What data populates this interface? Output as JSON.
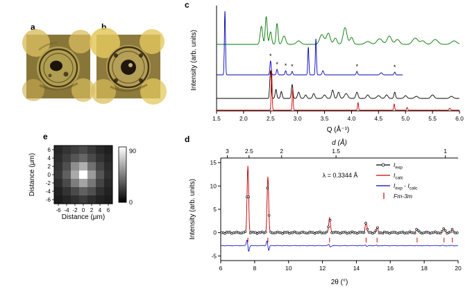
{
  "figure": {
    "panels": {
      "a": {
        "label": "a"
      },
      "b": {
        "label": "b"
      },
      "c": {
        "label": "c"
      },
      "d": {
        "label": "d"
      },
      "e": {
        "label": "e"
      }
    }
  },
  "colors": {
    "green": "#007700",
    "blue": "#0000bb",
    "black": "#000000",
    "red": "#cc0000",
    "asterisk": "#cc2200"
  },
  "chart_data": [
    {
      "id": "c",
      "type": "line",
      "title": "",
      "xlabel": "Q (Å⁻¹)",
      "ylabel": "Intensity (arb. units)",
      "xlim": [
        1.5,
        6.0
      ],
      "x_ticks": [
        "1.5",
        "2.0",
        "2.5",
        "3.0",
        "3.5",
        "4.0",
        "4.5",
        "5.0",
        "5.5",
        "6.0"
      ],
      "series": [
        {
          "name": "pattern-green",
          "color": "#007700",
          "baseline": 62,
          "xmin": 1.5,
          "xmax": 6.0,
          "peaks": [
            [
              2.33,
              26,
              0.022
            ],
            [
              2.42,
              40,
              0.018
            ],
            [
              2.5,
              18,
              0.02
            ],
            [
              2.62,
              30,
              0.018
            ],
            [
              2.75,
              12,
              0.03
            ],
            [
              3.02,
              5,
              0.04
            ],
            [
              3.45,
              14,
              0.04
            ],
            [
              3.57,
              16,
              0.035
            ],
            [
              3.7,
              9,
              0.03
            ],
            [
              3.88,
              24,
              0.035
            ],
            [
              4.0,
              10,
              0.03
            ],
            [
              4.3,
              4,
              0.05
            ],
            [
              4.52,
              8,
              0.05
            ],
            [
              4.7,
              12,
              0.04
            ],
            [
              4.85,
              7,
              0.04
            ],
            [
              5.18,
              9,
              0.05
            ],
            [
              5.32,
              5,
              0.04
            ],
            [
              5.55,
              7,
              0.05
            ],
            [
              5.9,
              5,
              0.05
            ]
          ]
        },
        {
          "name": "pattern-blue",
          "color": "#0000bb",
          "baseline": 106,
          "xmin": 1.5,
          "xmax": 4.95,
          "peaks": [
            [
              1.655,
              92,
              0.01
            ],
            [
              2.5,
              20,
              0.012
            ],
            [
              2.62,
              8,
              0.012
            ],
            [
              2.78,
              6,
              0.012
            ],
            [
              2.9,
              5,
              0.012
            ],
            [
              3.2,
              40,
              0.01
            ],
            [
              3.34,
              52,
              0.01
            ],
            [
              3.47,
              6,
              0.015
            ],
            [
              4.1,
              5,
              0.012
            ],
            [
              4.55,
              3,
              0.02
            ],
            [
              4.8,
              4,
              0.012
            ]
          ]
        },
        {
          "name": "pattern-black",
          "color": "#000000",
          "baseline": 140,
          "xmin": 1.5,
          "xmax": 6.0,
          "peaks": [
            [
              2.5,
              40,
              0.014
            ],
            [
              2.6,
              13,
              0.015
            ],
            [
              2.7,
              10,
              0.015
            ],
            [
              2.9,
              20,
              0.014
            ],
            [
              3.02,
              9,
              0.02
            ],
            [
              3.15,
              5,
              0.02
            ],
            [
              3.3,
              7,
              0.02
            ],
            [
              3.5,
              5,
              0.025
            ],
            [
              3.65,
              12,
              0.02
            ],
            [
              3.76,
              9,
              0.02
            ],
            [
              3.9,
              7,
              0.03
            ],
            [
              4.1,
              9,
              0.02
            ],
            [
              4.3,
              5,
              0.025
            ],
            [
              4.5,
              4,
              0.03
            ],
            [
              4.65,
              5,
              0.025
            ],
            [
              4.8,
              9,
              0.015
            ],
            [
              5.0,
              4,
              0.025
            ],
            [
              5.2,
              3,
              0.03
            ],
            [
              5.5,
              5,
              0.03
            ],
            [
              5.85,
              3,
              0.03
            ]
          ]
        },
        {
          "name": "pattern-red",
          "color": "#cc0000",
          "baseline": 157,
          "xmin": 1.5,
          "xmax": 6.0,
          "peaks": [
            [
              2.52,
              58,
              0.009
            ],
            [
              2.91,
              30,
              0.009
            ],
            [
              4.12,
              11,
              0.009
            ],
            [
              4.79,
              9,
              0.009
            ],
            [
              5.03,
              4,
              0.01
            ],
            [
              5.82,
              3,
              0.012
            ]
          ]
        }
      ],
      "asterisks": [
        {
          "q": 2.5
        },
        {
          "q": 2.62
        },
        {
          "q": 2.78
        },
        {
          "q": 2.9
        },
        {
          "q": 4.1
        },
        {
          "q": 4.8
        }
      ]
    },
    {
      "id": "d",
      "type": "line",
      "title": "",
      "xlabel": "2θ (°)",
      "ylabel": "Intensity (arb. units)",
      "top_label": "d (Å)",
      "annotation": "λ = 0.3344 Å",
      "xlim": [
        6,
        20
      ],
      "ylim": [
        -6,
        16
      ],
      "x_ticks": [
        6,
        8,
        10,
        12,
        14,
        16,
        18,
        20
      ],
      "y_ticks": [
        -5,
        0,
        5,
        10,
        15
      ],
      "d_ticks": [
        {
          "label": "3",
          "x": 6.39
        },
        {
          "label": "2.5",
          "x": 7.67
        },
        {
          "label": "2",
          "x": 9.59
        },
        {
          "label": "1.5",
          "x": 12.8
        },
        {
          "label": "1",
          "x": 19.25
        }
      ],
      "peaks": [
        [
          7.6,
          14.3,
          0.045
        ],
        [
          8.78,
          12.0,
          0.045
        ],
        [
          12.42,
          3.2,
          0.05
        ],
        [
          14.57,
          2.3,
          0.05
        ],
        [
          15.22,
          1.1,
          0.05
        ],
        [
          17.58,
          0.7,
          0.06
        ],
        [
          19.17,
          0.9,
          0.06
        ],
        [
          19.66,
          0.6,
          0.06
        ]
      ],
      "bragg_ticks": [
        7.6,
        8.78,
        12.42,
        14.57,
        15.22,
        17.58,
        19.17,
        19.66
      ],
      "diff_baseline": -2.8,
      "exp_color": "#000000",
      "calc_color": "#cc0000",
      "diff_color": "#0000bb",
      "bragg_color": "#cc0000",
      "legend": [
        {
          "name": "exp",
          "symbol": "circle-line",
          "color": "#000000",
          "label_color": "#000000",
          "segments": [
            {
              "t": "I",
              "i": 1
            },
            {
              "t": "exp",
              "s": 1
            }
          ]
        },
        {
          "name": "calc",
          "symbol": "line",
          "color": "#cc0000",
          "label_color": "#000000",
          "segments": [
            {
              "t": "I",
              "i": 1
            },
            {
              "t": "calc",
              "s": 1
            }
          ]
        },
        {
          "name": "diff",
          "symbol": "line",
          "color": "#0000bb",
          "label_color": "#000000",
          "segments": [
            {
              "t": "I",
              "i": 1
            },
            {
              "t": "exp",
              "s": 1
            },
            {
              "t": " - ",
              "i": 0
            },
            {
              "t": "I",
              "i": 1
            },
            {
              "t": "calc",
              "s": 1
            }
          ]
        },
        {
          "name": "phase",
          "symbol": "tick",
          "color": "#cc0000",
          "label_color": "#cc0000",
          "segments": [
            {
              "t": "Fm-3m",
              "i": 1
            }
          ]
        }
      ]
    },
    {
      "id": "e",
      "type": "heatmap",
      "title": "",
      "xlabel": "Distance (μm)",
      "ylabel": "Distance (μm)",
      "x_ticks": [
        -6,
        -4,
        -2,
        0,
        2,
        4,
        6
      ],
      "y_ticks": [
        6,
        4,
        2,
        0,
        -2,
        -4,
        -6
      ],
      "zlim": [
        0,
        90
      ],
      "colorbar_max": "90",
      "colorbar_min": "0",
      "values": [
        [
          14,
          18,
          22,
          26,
          20,
          14,
          11
        ],
        [
          16,
          22,
          30,
          36,
          26,
          18,
          13
        ],
        [
          18,
          28,
          50,
          62,
          40,
          24,
          15
        ],
        [
          20,
          34,
          60,
          90,
          55,
          30,
          17
        ],
        [
          16,
          26,
          44,
          58,
          42,
          24,
          14
        ],
        [
          12,
          18,
          26,
          34,
          28,
          17,
          12
        ],
        [
          10,
          13,
          17,
          21,
          16,
          12,
          10
        ]
      ]
    }
  ]
}
